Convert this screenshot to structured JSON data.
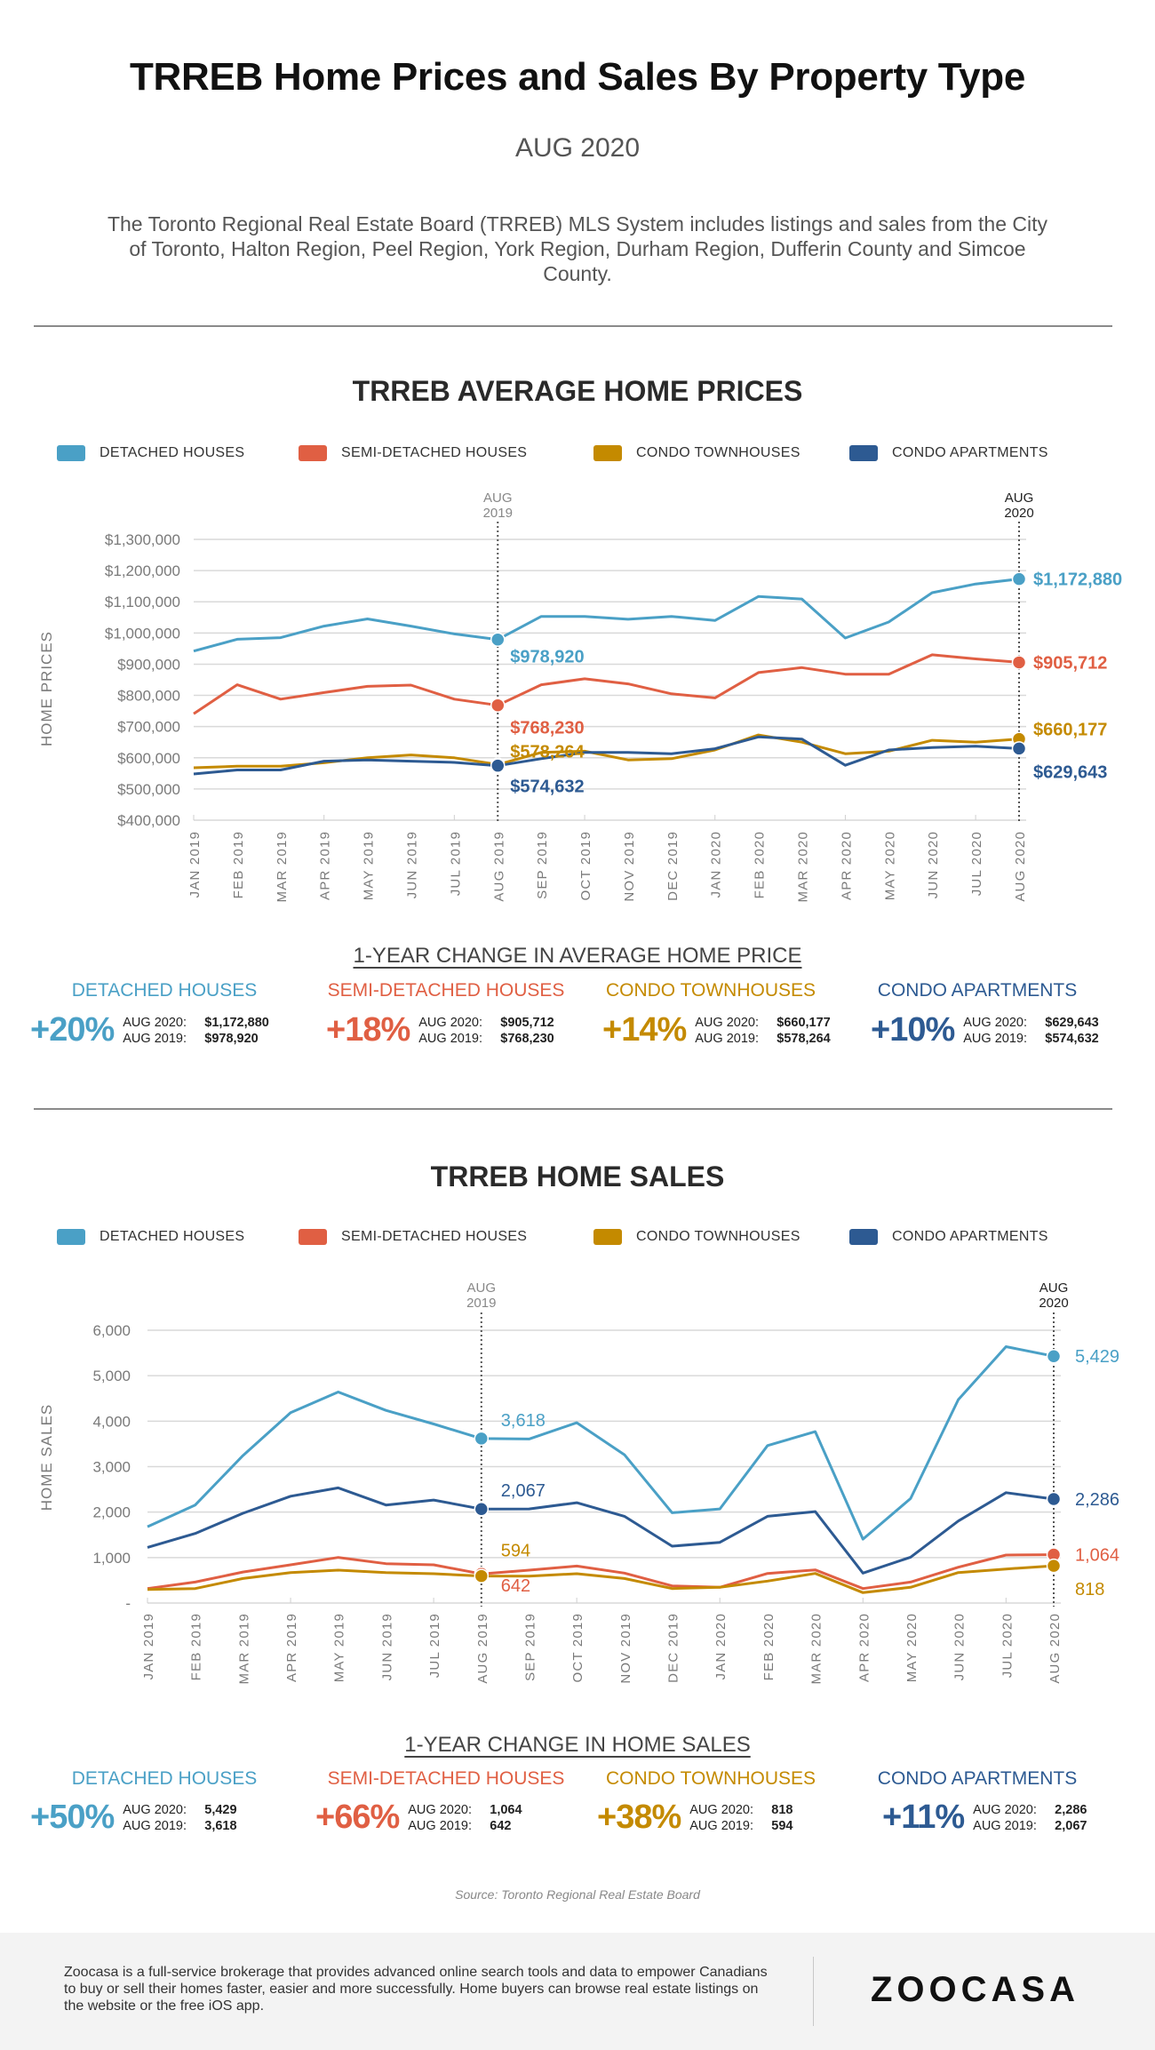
{
  "header": {
    "title": "TRREB Home Prices and Sales By Property Type",
    "subtitle": "AUG 2020",
    "description": "The Toronto Regional Real Estate Board (TRREB) MLS System includes listings and sales from the City of Toronto, Halton Region, Peel Region, York Region, Durham Region, Dufferin County and Simcoe County."
  },
  "legend": [
    {
      "label": "DETACHED HOUSES",
      "color": "#4aa0c6"
    },
    {
      "label": "SEMI-DETACHED HOUSES",
      "color": "#e05f43"
    },
    {
      "label": "CONDO TOWNHOUSES",
      "color": "#c48a00"
    },
    {
      "label": "CONDO APARTMENTS",
      "color": "#2d5a92"
    }
  ],
  "prices": {
    "section_title": "TRREB AVERAGE HOME PRICES",
    "change_title": "1-YEAR CHANGE IN AVERAGE HOME PRICE",
    "changes": [
      {
        "category": "DETACHED HOUSES",
        "pct": "+20%",
        "aug2020_label": "AUG 2020:",
        "aug2020": "$1,172,880",
        "aug2019_label": "AUG 2019:",
        "aug2019": "$978,920"
      },
      {
        "category": "SEMI-DETACHED HOUSES",
        "pct": "+18%",
        "aug2020_label": "AUG 2020:",
        "aug2020": "$905,712",
        "aug2019_label": "AUG 2019:",
        "aug2019": "$768,230"
      },
      {
        "category": "CONDO TOWNHOUSES",
        "pct": "+14%",
        "aug2020_label": "AUG 2020:",
        "aug2020": "$660,177",
        "aug2019_label": "AUG 2019:",
        "aug2019": "$578,264"
      },
      {
        "category": "CONDO APARTMENTS",
        "pct": "+10%",
        "aug2020_label": "AUG 2020:",
        "aug2020": "$629,643",
        "aug2019_label": "AUG 2019:",
        "aug2019": "$574,632"
      }
    ]
  },
  "sales": {
    "section_title": "TRREB HOME SALES",
    "change_title": "1-YEAR CHANGE IN HOME SALES",
    "changes": [
      {
        "category": "DETACHED HOUSES",
        "pct": "+50%",
        "aug2020_label": "AUG 2020:",
        "aug2020": "5,429",
        "aug2019_label": "AUG 2019:",
        "aug2019": "3,618"
      },
      {
        "category": "SEMI-DETACHED HOUSES",
        "pct": "+66%",
        "aug2020_label": "AUG 2020:",
        "aug2020": "1,064",
        "aug2019_label": "AUG 2019:",
        "aug2019": "642"
      },
      {
        "category": "CONDO TOWNHOUSES",
        "pct": "+38%",
        "aug2020_label": "AUG 2020:",
        "aug2020": "818",
        "aug2019_label": "AUG 2019:",
        "aug2019": "594"
      },
      {
        "category": "CONDO APARTMENTS",
        "pct": "+11%",
        "aug2020_label": "AUG 2020:",
        "aug2020": "2,286",
        "aug2019_label": "AUG 2019:",
        "aug2019": "2,067"
      }
    ]
  },
  "footer": {
    "source": "Source: Toronto Regional Real Estate Board",
    "about": "Zoocasa is a full-service brokerage that provides advanced online search tools and data to empower Canadians to buy or sell their homes faster, easier and more successfully. Home buyers can browse real estate listings on the website or the free iOS app.",
    "logo": "ZOOCASA"
  },
  "chart_data": [
    {
      "type": "line",
      "title": "TRREB AVERAGE HOME PRICES",
      "xlabel": "",
      "ylabel": "HOME PRICES",
      "ylim": [
        400000,
        1300000
      ],
      "yticks": [
        400000,
        500000,
        600000,
        700000,
        800000,
        900000,
        1000000,
        1100000,
        1200000,
        1300000
      ],
      "ytick_labels": [
        "$400,000",
        "$500,000",
        "$600,000",
        "$700,000",
        "$800,000",
        "$900,000",
        "$1,000,000",
        "$1,100,000",
        "$1,200,000",
        "$1,300,000"
      ],
      "grid": true,
      "legend_position": "top",
      "categories": [
        "JAN 2019",
        "FEB 2019",
        "MAR 2019",
        "APR 2019",
        "MAY 2019",
        "JUN 2019",
        "JUL 2019",
        "AUG 2019",
        "SEP 2019",
        "OCT 2019",
        "NOV 2019",
        "DEC 2019",
        "JAN 2020",
        "FEB 2020",
        "MAR 2020",
        "APR 2020",
        "MAY 2020",
        "JUN 2020",
        "JUL 2020",
        "AUG 2020"
      ],
      "markers": [
        {
          "category": "AUG 2019",
          "label": "AUG 2019",
          "line1": "AUG",
          "line2": "2019"
        },
        {
          "category": "AUG 2020",
          "label": "AUG 2020",
          "line1": "AUG",
          "line2": "2020"
        }
      ],
      "series": [
        {
          "name": "DETACHED HOUSES",
          "color": "#4aa0c6",
          "values": [
            942000,
            980000,
            985000,
            1022000,
            1045000,
            1022000,
            997000,
            978920,
            1053000,
            1053000,
            1044000,
            1053000,
            1040000,
            1117000,
            1109000,
            984000,
            1035000,
            1129000,
            1157000,
            1172880
          ],
          "labels": {
            "AUG 2019": "$978,920",
            "AUG 2020": "$1,172,880"
          }
        },
        {
          "name": "SEMI-DETACHED HOUSES",
          "color": "#e05f43",
          "values": [
            741000,
            834000,
            788000,
            809000,
            829000,
            833000,
            788000,
            768230,
            834000,
            853000,
            837000,
            805000,
            792000,
            873000,
            889000,
            868000,
            868000,
            930000,
            917000,
            905712
          ],
          "labels": {
            "AUG 2019": "$768,230",
            "AUG 2020": "$905,712"
          }
        },
        {
          "name": "CONDO TOWNHOUSES",
          "color": "#c48a00",
          "values": [
            568000,
            573000,
            573000,
            584000,
            600000,
            609000,
            600000,
            578264,
            617000,
            621000,
            593000,
            597000,
            625000,
            673000,
            650000,
            613000,
            621000,
            656000,
            650000,
            660177
          ],
          "labels": {
            "AUG 2019": "$578,264",
            "AUG 2020": "$660,177"
          }
        },
        {
          "name": "CONDO APARTMENTS",
          "color": "#2d5a92",
          "values": [
            548000,
            561000,
            561000,
            589000,
            593000,
            589000,
            585000,
            574632,
            597000,
            617000,
            617000,
            613000,
            629000,
            667000,
            660000,
            576000,
            625000,
            633000,
            637000,
            629643
          ],
          "labels": {
            "AUG 2019": "$574,632",
            "AUG 2020": "$629,643"
          }
        }
      ]
    },
    {
      "type": "line",
      "title": "TRREB HOME SALES",
      "xlabel": "",
      "ylabel": "HOME SALES",
      "ylim": [
        0,
        6000
      ],
      "yticks": [
        0,
        1000,
        2000,
        3000,
        4000,
        5000,
        6000
      ],
      "ytick_labels": [
        "-",
        "1,000",
        "2,000",
        "3,000",
        "4,000",
        "5,000",
        "6,000"
      ],
      "grid": true,
      "legend_position": "top",
      "categories": [
        "JAN 2019",
        "FEB 2019",
        "MAR 2019",
        "APR 2019",
        "MAY 2019",
        "JUN 2019",
        "JUL 2019",
        "AUG 2019",
        "SEP 2019",
        "OCT 2019",
        "NOV 2019",
        "DEC 2019",
        "JAN 2020",
        "FEB 2020",
        "MAR 2020",
        "APR 2020",
        "MAY 2020",
        "JUN 2020",
        "JUL 2020",
        "AUG 2020"
      ],
      "markers": [
        {
          "category": "AUG 2019",
          "label": "AUG 2019",
          "line1": "AUG",
          "line2": "2019"
        },
        {
          "category": "AUG 2020",
          "label": "AUG 2020",
          "line1": "AUG",
          "line2": "2020"
        }
      ],
      "series": [
        {
          "name": "DETACHED HOUSES",
          "color": "#4aa0c6",
          "values": [
            1678,
            2155,
            3242,
            4186,
            4642,
            4238,
            3939,
            3618,
            3607,
            3965,
            3262,
            1986,
            2070,
            3463,
            3770,
            1406,
            2298,
            4473,
            5638,
            5429
          ],
          "labels": {
            "AUG 2019": "3,618",
            "AUG 2020": "5,429"
          }
        },
        {
          "name": "SEMI-DETACHED HOUSES",
          "color": "#e05f43",
          "values": [
            319,
            462,
            683,
            840,
            1003,
            866,
            840,
            642,
            723,
            814,
            658,
            378,
            345,
            651,
            729,
            319,
            462,
            788,
            1055,
            1064
          ],
          "labels": {
            "AUG 2019": "642",
            "AUG 2020": "1,064"
          }
        },
        {
          "name": "CONDO TOWNHOUSES",
          "color": "#c48a00",
          "values": [
            299,
            319,
            540,
            671,
            723,
            671,
            645,
            594,
            592,
            645,
            540,
            319,
            345,
            482,
            651,
            228,
            345,
            671,
            749,
            818
          ],
          "labels": {
            "AUG 2019": "594",
            "AUG 2020": "818"
          }
        },
        {
          "name": "CONDO APARTMENTS",
          "color": "#2d5a92",
          "values": [
            1224,
            1530,
            1973,
            2350,
            2533,
            2155,
            2266,
            2067,
            2070,
            2207,
            1908,
            1250,
            1335,
            1908,
            2012,
            658,
            1009,
            1803,
            2428,
            2286
          ],
          "labels": {
            "AUG 2019": "2,067",
            "AUG 2020": "2,286"
          }
        }
      ]
    }
  ]
}
